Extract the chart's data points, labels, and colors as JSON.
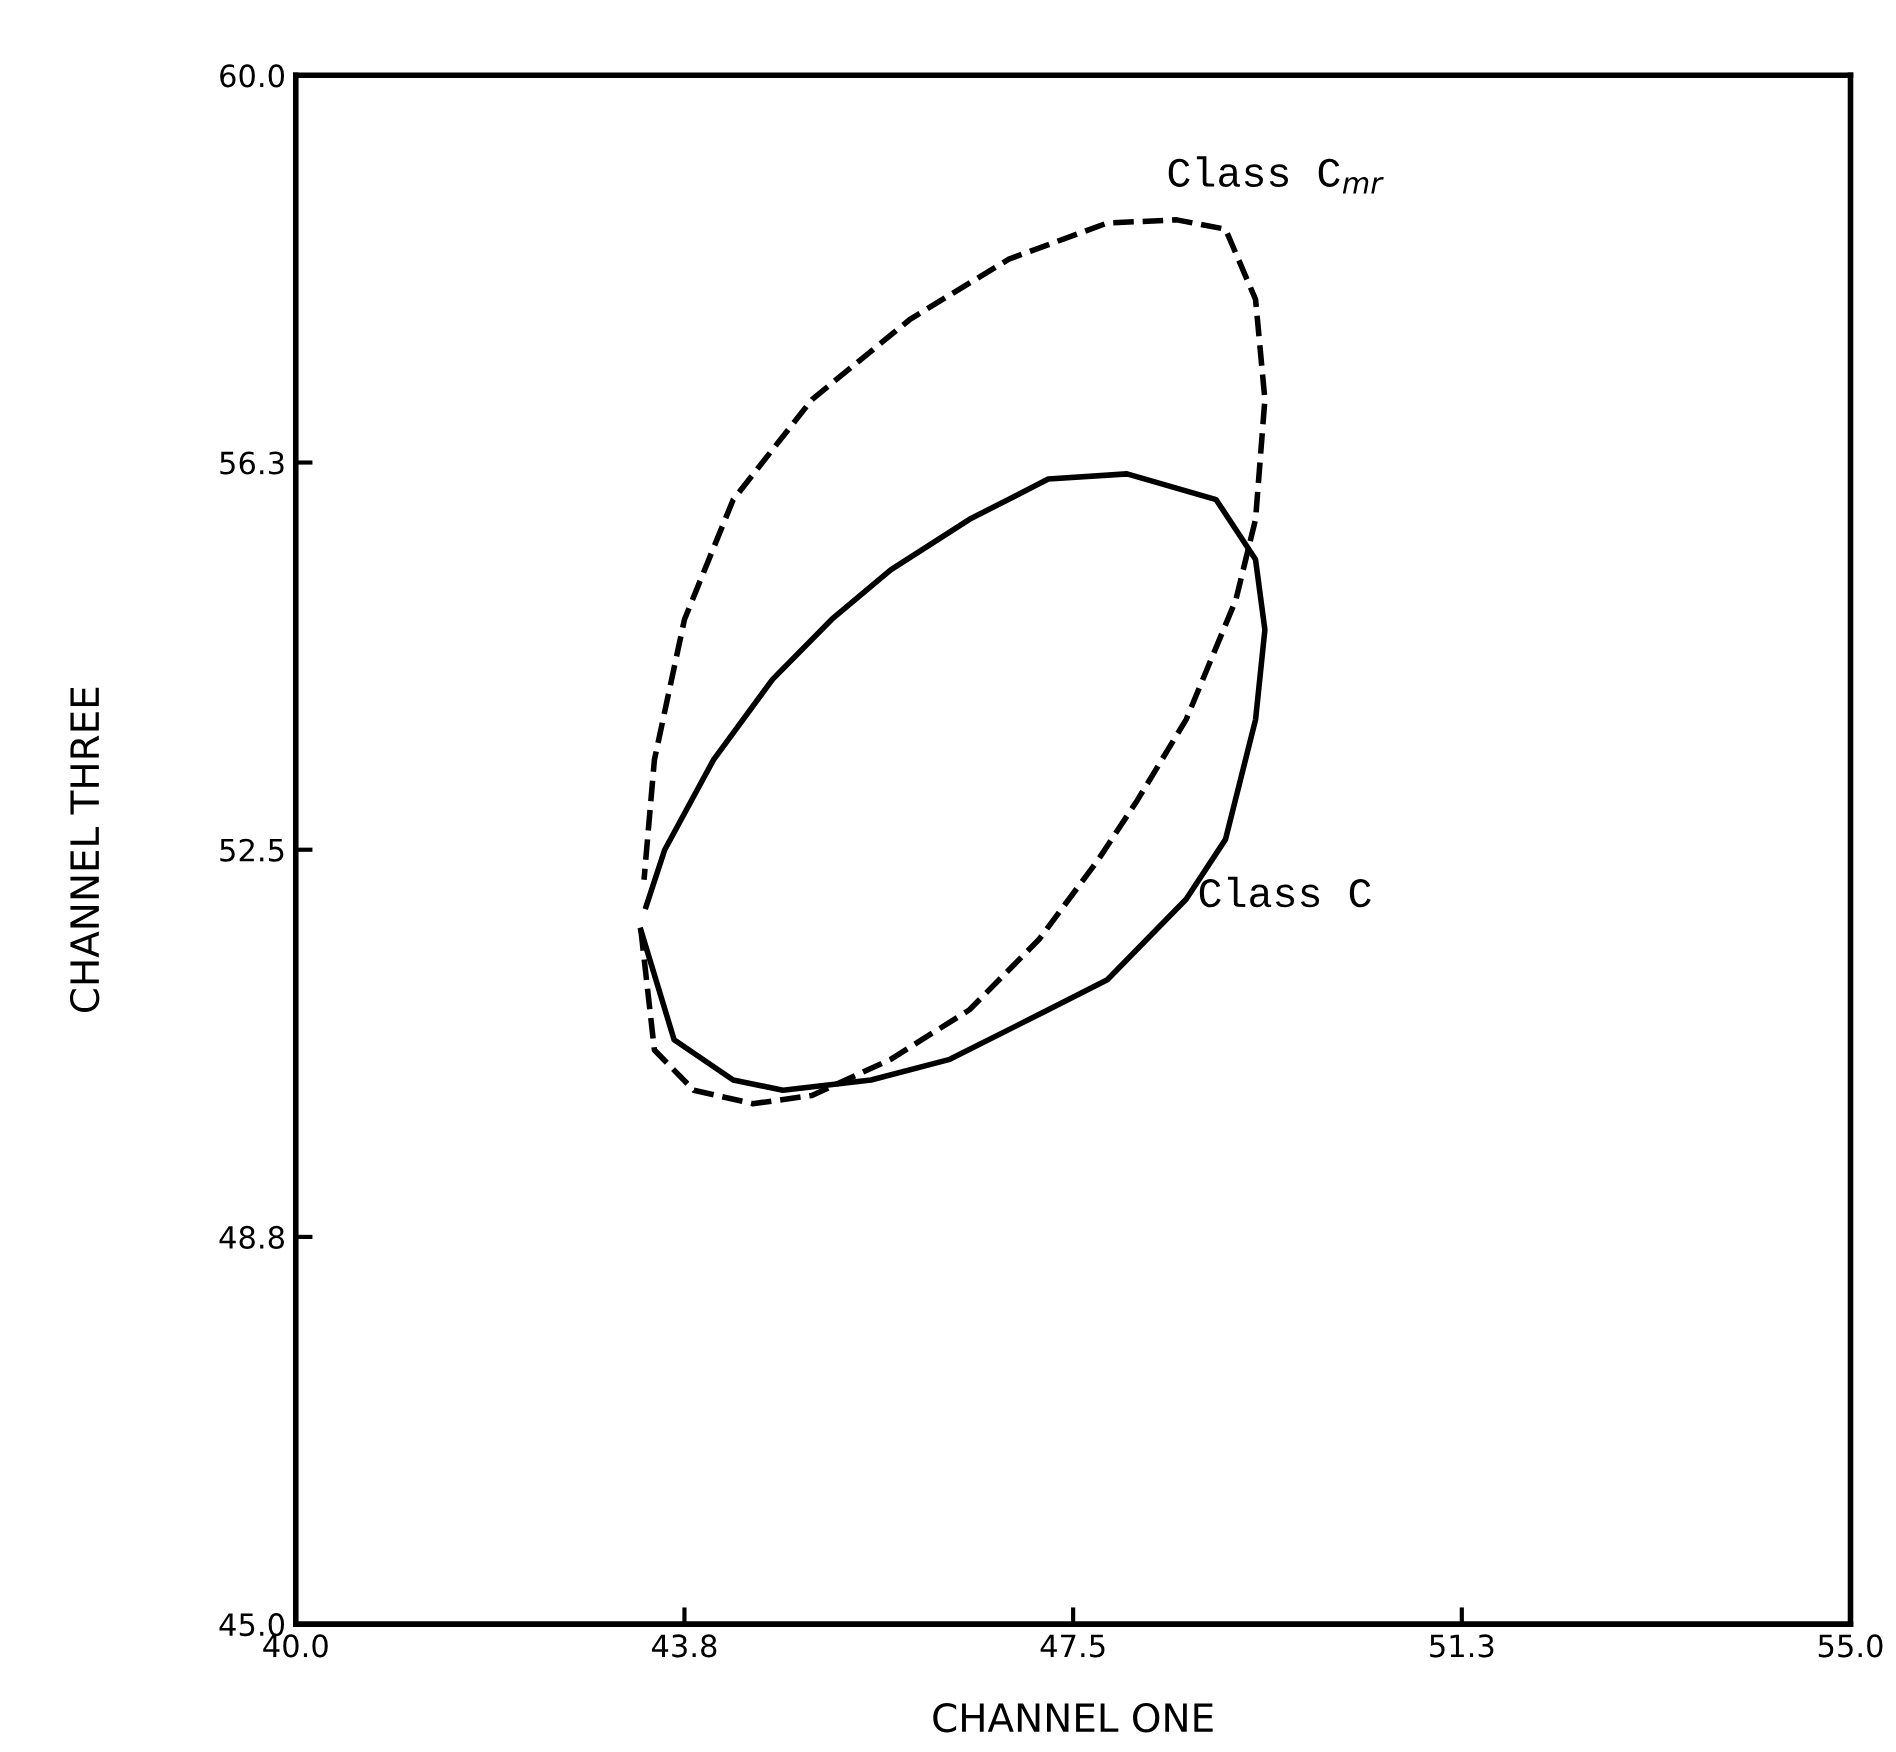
{
  "chart_data": {
    "type": "line",
    "xlabel": "CHANNEL ONE",
    "ylabel": "CHANNEL THREE",
    "xlim": [
      40.0,
      55.0
    ],
    "ylim": [
      45.0,
      60.0
    ],
    "xticks": [
      {
        "value": 40.0,
        "label": "40.0"
      },
      {
        "value": 43.75,
        "label": "43.8"
      },
      {
        "value": 47.5,
        "label": "47.5"
      },
      {
        "value": 51.25,
        "label": "51.3"
      },
      {
        "value": 55.0,
        "label": "55.0"
      }
    ],
    "yticks": [
      {
        "value": 45.0,
        "label": "45.0"
      },
      {
        "value": 48.75,
        "label": "48.8"
      },
      {
        "value": 52.5,
        "label": "52.5"
      },
      {
        "value": 56.25,
        "label": "56.3"
      },
      {
        "value": 60.0,
        "label": "60.0"
      }
    ],
    "grid": false,
    "marker": "none",
    "series": [
      {
        "color": "#000000",
        "line_style": "solid",
        "x": [
          43.33,
          43.65,
          44.22,
          44.7,
          45.55,
          46.31,
          47.26,
          47.83,
          48.59,
          48.97,
          49.26,
          49.35,
          49.26,
          48.88,
          48.02,
          47.26,
          46.5,
          45.74,
          45.17,
          44.6,
          44.03,
          43.56,
          43.38
        ],
        "values": [
          51.72,
          50.66,
          50.27,
          50.17,
          50.27,
          50.47,
          50.95,
          51.24,
          52.02,
          52.6,
          53.76,
          54.63,
          55.31,
          55.89,
          56.14,
          56.09,
          55.7,
          55.21,
          54.73,
          54.15,
          53.37,
          52.5,
          51.95
        ]
      },
      {
        "color": "#000000",
        "line_style": "dashed",
        "x": [
          43.33,
          43.46,
          43.84,
          44.41,
          44.98,
          45.74,
          46.5,
          47.17,
          47.74,
          48.12,
          48.59,
          49.07,
          49.26,
          49.35,
          49.26,
          48.97,
          48.5,
          47.83,
          46.88,
          45.93,
          44.98,
          44.22,
          43.75,
          43.46,
          43.36
        ],
        "values": [
          51.72,
          50.56,
          50.17,
          50.04,
          50.12,
          50.47,
          50.95,
          51.63,
          52.4,
          52.98,
          53.76,
          54.92,
          55.7,
          56.86,
          57.83,
          58.51,
          58.6,
          58.57,
          58.22,
          57.64,
          56.86,
          55.89,
          54.73,
          53.37,
          52.21
        ]
      }
    ],
    "annotations": [
      "Class C",
      "Class C$_{mr}$"
    ]
  }
}
